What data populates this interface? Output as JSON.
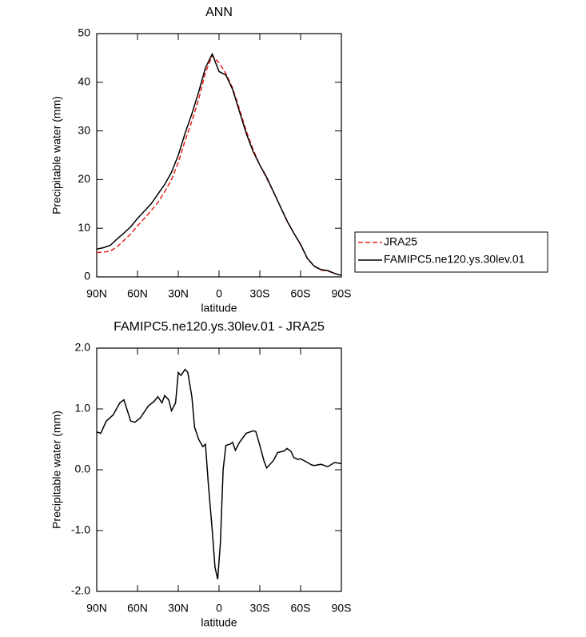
{
  "chart_data": [
    {
      "type": "line",
      "title": "ANN",
      "xlabel": "latitude",
      "ylabel": "Precipitable water (mm)",
      "x": [
        90,
        85,
        80,
        75,
        70,
        65,
        60,
        55,
        50,
        45,
        40,
        35,
        30,
        25,
        20,
        15,
        10,
        5,
        0,
        -5,
        -10,
        -15,
        -20,
        -25,
        -30,
        -35,
        -40,
        -45,
        -50,
        -55,
        -60,
        -65,
        -70,
        -75,
        -80,
        -85,
        -90
      ],
      "series": [
        {
          "name": "JRA25",
          "color": "#e8211d",
          "dash": true,
          "values": [
            5.0,
            5.1,
            5.3,
            6.2,
            7.5,
            8.8,
            10.5,
            12.0,
            13.6,
            15.3,
            17.5,
            20.0,
            23.5,
            28.0,
            32.0,
            36.5,
            42.0,
            45.5,
            44.0,
            41.8,
            38.8,
            34.5,
            30.0,
            26.2,
            23.0,
            20.3,
            17.5,
            14.5,
            11.6,
            9.0,
            6.6,
            3.8,
            2.2,
            1.4,
            1.2,
            0.7,
            0.3
          ]
        },
        {
          "name": "FAMIPC5.ne120.ys.30lev.01",
          "color": "#000000",
          "dash": false,
          "values": [
            5.7,
            6.0,
            6.5,
            7.8,
            9.0,
            10.3,
            12.0,
            13.5,
            15.0,
            17.0,
            19.0,
            21.5,
            25.0,
            29.5,
            33.5,
            38.0,
            43.0,
            45.8,
            42.2,
            41.5,
            38.5,
            34.0,
            29.5,
            25.8,
            23.0,
            20.5,
            17.5,
            14.5,
            11.5,
            9.0,
            6.7,
            3.8,
            2.2,
            1.5,
            1.3,
            0.7,
            0.3
          ]
        }
      ],
      "xlim": [
        90,
        -90
      ],
      "xticks": [
        {
          "value": 90,
          "label": "90N"
        },
        {
          "value": 60,
          "label": "60N"
        },
        {
          "value": 30,
          "label": "30N"
        },
        0,
        {
          "value": -30,
          "label": "30S"
        },
        {
          "value": -60,
          "label": "60S"
        },
        {
          "value": -90,
          "label": "90S"
        }
      ],
      "ylim": [
        0,
        50
      ],
      "yticks": [
        0,
        10,
        20,
        30,
        40,
        50
      ],
      "legend": "right"
    },
    {
      "type": "line",
      "title": "FAMIPC5.ne120.ys.30lev.01 - JRA25",
      "xlabel": "latitude",
      "ylabel": "Precipitable water (mm)",
      "x": [
        90,
        87,
        83,
        78,
        73,
        70,
        65,
        62,
        58,
        52,
        48,
        45,
        42,
        40,
        37,
        35,
        32,
        30,
        28,
        25,
        23,
        20,
        18,
        15,
        12,
        10,
        8,
        5,
        3,
        1,
        -1,
        -3,
        -5,
        -8,
        -10,
        -12,
        -15,
        -20,
        -25,
        -27,
        -30,
        -33,
        -35,
        -40,
        -43,
        -48,
        -50,
        -53,
        -55,
        -58,
        -60,
        -65,
        -68,
        -70,
        -75,
        -80,
        -85,
        -90
      ],
      "values": [
        0.62,
        0.6,
        0.8,
        0.9,
        1.1,
        1.15,
        0.8,
        0.78,
        0.85,
        1.05,
        1.12,
        1.2,
        1.1,
        1.22,
        1.15,
        0.97,
        1.1,
        1.6,
        1.55,
        1.65,
        1.6,
        1.2,
        0.7,
        0.5,
        0.38,
        0.42,
        -0.2,
        -1.0,
        -1.6,
        -1.8,
        -1.2,
        0.0,
        0.4,
        0.42,
        0.45,
        0.32,
        0.45,
        0.6,
        0.64,
        0.63,
        0.4,
        0.15,
        0.03,
        0.15,
        0.28,
        0.31,
        0.35,
        0.3,
        0.2,
        0.17,
        0.18,
        0.12,
        0.08,
        0.07,
        0.09,
        0.05,
        0.12,
        0.1
      ],
      "color": "#000000",
      "xlim": [
        90,
        -90
      ],
      "xticks": [
        {
          "value": 90,
          "label": "90N"
        },
        {
          "value": 60,
          "label": "60N"
        },
        {
          "value": 30,
          "label": "30N"
        },
        0,
        {
          "value": -30,
          "label": "30S"
        },
        {
          "value": -60,
          "label": "60S"
        },
        {
          "value": -90,
          "label": "90S"
        }
      ],
      "ylim": [
        -2,
        2
      ],
      "yticks": [
        {
          "value": -2,
          "label": "-2.0"
        },
        {
          "value": -1,
          "label": "-1.0"
        },
        {
          "value": 0,
          "label": "0.0"
        },
        {
          "value": 1,
          "label": "1.0"
        },
        {
          "value": 2,
          "label": "2.0"
        }
      ]
    }
  ]
}
